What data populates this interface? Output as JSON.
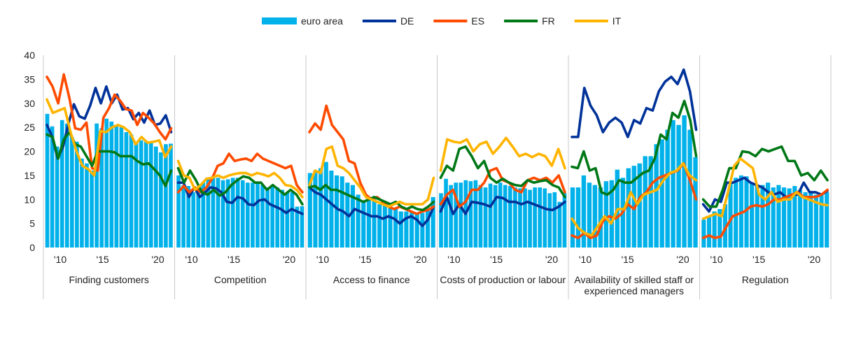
{
  "chart_data": {
    "type": "bar+line",
    "title": "",
    "ylim": [
      0,
      40
    ],
    "yticks": [
      0,
      5,
      10,
      15,
      20,
      25,
      30,
      35,
      40
    ],
    "legend_position": "top-center",
    "legend": [
      {
        "key": "ea",
        "label": "euro area",
        "color": "#00b1ea",
        "kind": "bar"
      },
      {
        "key": "de",
        "label": "DE",
        "color": "#003299",
        "kind": "line"
      },
      {
        "key": "es",
        "label": "ES",
        "color": "#ff4b00",
        "kind": "line"
      },
      {
        "key": "fr",
        "label": "FR",
        "color": "#007816",
        "kind": "line"
      },
      {
        "key": "it",
        "label": "IT",
        "color": "#ffb400",
        "kind": "line"
      }
    ],
    "year_tick_labels": [
      "'10",
      "'15",
      "'20"
    ],
    "panels": [
      {
        "category": "Finding customers",
        "ea": [
          27.8,
          25.2,
          21.0,
          26.5,
          25.8,
          23.0,
          22.0,
          18.5,
          17.5,
          16.0,
          25.8,
          24.8,
          26.8,
          26.2,
          25.5,
          25.0,
          24.0,
          23.5,
          22.0,
          22.3,
          22.0,
          21.8,
          21.0,
          19.8,
          21.5,
          21.6
        ],
        "de": [
          25.5,
          23.0,
          18.5,
          21.0,
          25.8,
          29.8,
          27.3,
          26.8,
          29.5,
          33.2,
          30.0,
          33.5,
          30.0,
          31.8,
          28.7,
          29.0,
          26.7,
          28.0,
          26.0,
          28.5,
          25.5,
          25.8,
          27.5,
          24.0
        ],
        "es": [
          35.5,
          33.5,
          30.0,
          36.0,
          31.0,
          24.8,
          24.5,
          26.0,
          16.5,
          16.0,
          27.0,
          29.0,
          31.8,
          30.5,
          28.8,
          28.5,
          25.5,
          28.0,
          27.0,
          25.8,
          24.0,
          22.5,
          24.8
        ],
        "fr": [
          23.5,
          23.0,
          18.5,
          22.5,
          24.0,
          21.5,
          21.0,
          19.0,
          17.0,
          20.0,
          20.0,
          20.0,
          19.8,
          19.0,
          19.0,
          19.0,
          18.0,
          17.3,
          17.5,
          16.3,
          15.0,
          12.8,
          16.0
        ],
        "it": [
          30.8,
          28.0,
          28.5,
          29.0,
          24.0,
          20.0,
          17.0,
          16.3,
          15.0,
          24.2,
          24.0,
          25.0,
          25.5,
          25.0,
          24.0,
          21.5,
          23.0,
          21.8,
          22.0,
          22.3,
          18.8,
          21.0
        ]
      },
      {
        "category": "Competition",
        "ea": [
          15.0,
          13.0,
          12.8,
          11.5,
          12.5,
          13.5,
          14.5,
          14.8,
          14.5,
          14.0,
          14.2,
          14.5,
          14.5,
          14.0,
          13.5,
          13.5,
          13.5,
          13.0,
          12.5,
          12.8,
          12.5,
          12.0,
          11.5,
          11.5,
          8.5,
          8.6
        ],
        "de": [
          13.5,
          13.5,
          10.5,
          12.5,
          10.5,
          11.5,
          12.5,
          12.3,
          11.5,
          9.5,
          9.3,
          10.5,
          10.2,
          9.0,
          8.8,
          9.8,
          10.0,
          9.0,
          8.5,
          8.0,
          7.2,
          8.0,
          7.5,
          7.0
        ],
        "es": [
          11.5,
          12.8,
          11.5,
          12.5,
          11.5,
          12.5,
          14.3,
          17.0,
          17.5,
          19.5,
          18.0,
          18.3,
          18.5,
          18.0,
          19.5,
          18.5,
          18.0,
          17.5,
          17.0,
          16.5,
          17.0,
          13.0,
          11.5
        ],
        "fr": [
          16.5,
          13.5,
          16.0,
          14.0,
          11.5,
          11.0,
          12.0,
          10.8,
          11.5,
          13.0,
          14.0,
          14.8,
          14.5,
          13.5,
          13.5,
          12.0,
          13.0,
          12.0,
          11.0,
          12.0,
          11.0,
          9.0
        ],
        "it": [
          18.0,
          15.0,
          14.5,
          12.0,
          13.0,
          14.3,
          14.5,
          15.0,
          14.5,
          15.0,
          15.3,
          15.5,
          15.5,
          15.0,
          15.5,
          15.2,
          14.8,
          15.5,
          14.5,
          13.0,
          12.8,
          12.0,
          10.5
        ]
      },
      {
        "category": "Access to finance",
        "ea": [
          15.5,
          16.0,
          16.5,
          17.8,
          16.0,
          15.0,
          14.8,
          13.5,
          13.0,
          11.0,
          9.5,
          10.5,
          10.0,
          9.0,
          9.0,
          8.5,
          8.0,
          7.5,
          7.5,
          7.5,
          7.0,
          7.2,
          8.0,
          10.5
        ],
        "de": [
          12.5,
          11.5,
          11.0,
          10.0,
          9.0,
          8.0,
          7.5,
          6.5,
          8.0,
          7.5,
          7.0,
          6.5,
          6.5,
          6.0,
          6.5,
          6.0,
          5.0,
          6.0,
          6.5,
          5.8,
          4.5,
          5.8,
          8.5
        ],
        "es": [
          24.0,
          25.8,
          24.5,
          29.5,
          25.5,
          24.0,
          22.5,
          18.0,
          17.5,
          13.5,
          11.0,
          10.0,
          10.5,
          9.5,
          8.5,
          8.0,
          8.5,
          8.0,
          7.5,
          7.0,
          7.5,
          7.8,
          8.5
        ],
        "fr": [
          12.5,
          12.8,
          12.0,
          13.0,
          12.0,
          12.0,
          11.5,
          11.0,
          10.5,
          10.0,
          9.5,
          10.0,
          10.5,
          10.0,
          9.5,
          9.0,
          9.5,
          8.5,
          8.0,
          8.5,
          8.0,
          7.8,
          8.5,
          9.5
        ],
        "it": [
          13.0,
          16.0,
          15.5,
          20.5,
          21.0,
          17.0,
          16.5,
          15.5,
          14.0,
          12.5,
          10.5,
          10.0,
          9.5,
          9.0,
          8.5,
          9.0,
          9.5,
          9.0,
          9.0,
          9.0,
          9.0,
          10.0,
          14.5
        ]
      },
      {
        "category": "Costs of production or labour",
        "ea": [
          11.3,
          14.3,
          13.0,
          13.5,
          13.5,
          14.0,
          13.8,
          14.0,
          13.0,
          12.5,
          13.3,
          13.0,
          13.5,
          13.0,
          12.8,
          12.5,
          12.3,
          12.3,
          12.0,
          12.5,
          12.5,
          12.3,
          11.3,
          11.5,
          9.5,
          11.3
        ],
        "de": [
          7.5,
          10.5,
          7.0,
          9.0,
          7.0,
          9.5,
          9.3,
          9.0,
          8.5,
          10.5,
          10.3,
          9.5,
          9.5,
          9.0,
          9.5,
          9.0,
          8.5,
          8.0,
          7.8,
          8.5,
          9.5
        ],
        "es": [
          9.0,
          11.0,
          12.0,
          8.5,
          9.5,
          12.0,
          12.0,
          13.5,
          16.0,
          16.5,
          14.0,
          13.5,
          12.0,
          11.5,
          14.0,
          14.5,
          14.0,
          14.5,
          13.5,
          15.0,
          11.5
        ],
        "fr": [
          14.5,
          17.0,
          16.0,
          20.5,
          21.0,
          19.0,
          16.5,
          18.0,
          14.5,
          13.5,
          14.3,
          13.5,
          13.0,
          12.8,
          14.0,
          13.5,
          13.8,
          14.0,
          13.0,
          12.5,
          10.5
        ],
        "it": [
          16.0,
          22.5,
          22.0,
          21.8,
          22.5,
          20.0,
          21.5,
          22.0,
          19.5,
          21.0,
          22.8,
          21.0,
          19.0,
          19.5,
          18.8,
          19.5,
          19.0,
          17.0,
          20.5,
          16.5
        ]
      },
      {
        "category": "Availability of skilled staff or experienced managers",
        "ea": [
          12.5,
          12.5,
          15.0,
          13.5,
          13.0,
          12.5,
          13.8,
          14.0,
          16.2,
          14.5,
          16.5,
          17.0,
          17.5,
          19.0,
          19.0,
          21.5,
          22.5,
          24.5,
          26.5,
          25.5,
          27.5,
          24.5,
          18.8
        ],
        "de": [
          23.0,
          23.0,
          33.2,
          29.5,
          27.5,
          24.0,
          26.0,
          27.0,
          26.0,
          23.0,
          26.5,
          25.8,
          29.0,
          28.5,
          32.5,
          34.5,
          35.5,
          34.0,
          37.0,
          32.5,
          24.5
        ],
        "es": [
          2.5,
          2.0,
          3.0,
          2.0,
          2.5,
          5.5,
          6.5,
          6.0,
          7.0,
          9.0,
          8.0,
          10.5,
          11.5,
          13.5,
          14.5,
          15.0,
          15.5,
          16.0,
          17.5,
          14.0,
          10.0
        ],
        "fr": [
          16.8,
          16.5,
          20.0,
          16.0,
          16.5,
          11.5,
          11.0,
          12.0,
          14.0,
          13.5,
          13.5,
          14.5,
          15.5,
          16.0,
          18.5,
          23.5,
          22.5,
          28.0,
          27.0,
          30.5,
          26.5,
          19.0
        ],
        "it": [
          6.0,
          4.0,
          3.0,
          2.5,
          4.5,
          6.5,
          5.0,
          8.0,
          8.0,
          11.5,
          9.0,
          11.0,
          11.5,
          12.0,
          14.0,
          15.5,
          16.0,
          17.5,
          15.0,
          14.0
        ]
      },
      {
        "category": "Regulation",
        "ea": [
          5.8,
          6.5,
          7.5,
          8.0,
          9.0,
          13.5,
          14.5,
          15.0,
          14.8,
          13.5,
          13.0,
          13.0,
          13.5,
          12.5,
          13.0,
          12.5,
          12.3,
          12.8,
          12.0,
          11.5,
          11.5,
          11.0,
          11.0,
          11.5
        ],
        "de": [
          9.0,
          7.5,
          10.0,
          9.5,
          13.5,
          13.5,
          14.0,
          14.5,
          13.5,
          13.0,
          12.5,
          11.5,
          11.0,
          11.5,
          10.5,
          11.0,
          11.0,
          13.5,
          11.5,
          11.5,
          11.0,
          11.8
        ],
        "es": [
          2.0,
          2.5,
          2.0,
          2.3,
          4.5,
          6.5,
          7.0,
          7.5,
          8.5,
          8.8,
          8.5,
          9.0,
          10.0,
          10.0,
          10.5,
          11.0,
          11.5,
          10.5,
          10.5,
          10.5,
          11.0,
          12.0
        ],
        "fr": [
          10.0,
          8.5,
          8.5,
          12.0,
          16.5,
          16.5,
          20.0,
          19.8,
          19.0,
          20.5,
          20.0,
          20.5,
          21.0,
          18.0,
          18.0,
          15.0,
          15.5,
          14.0,
          16.0,
          14.0
        ],
        "it": [
          6.0,
          6.5,
          7.0,
          6.5,
          11.5,
          17.0,
          18.5,
          17.5,
          16.5,
          11.0,
          10.0,
          11.5,
          9.5,
          10.0,
          10.0,
          11.5,
          10.5,
          10.0,
          9.5,
          9.0,
          8.8
        ]
      }
    ]
  }
}
